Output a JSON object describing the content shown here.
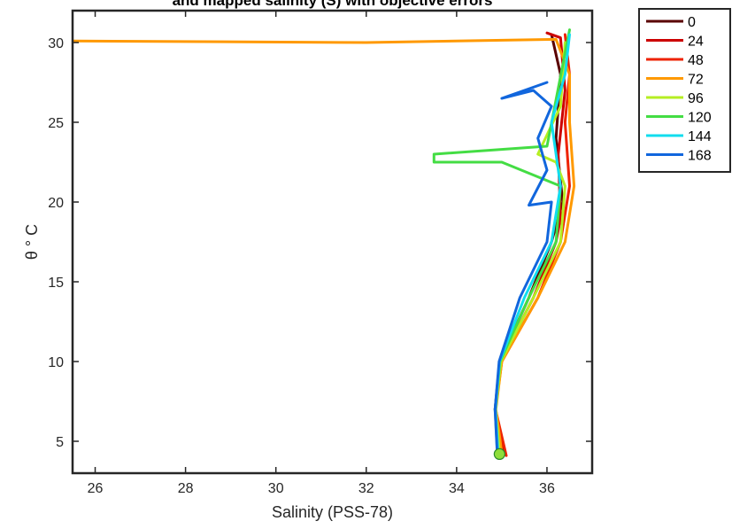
{
  "chart_data": {
    "type": "line",
    "title": "and mapped salinity (S) with objective errors",
    "xlabel": "Salinity (PSS-78)",
    "ylabel": "θ ° C",
    "xlim": [
      25.5,
      37
    ],
    "ylim": [
      3,
      32
    ],
    "xticks": [
      "26",
      "28",
      "30",
      "32",
      "34",
      "36"
    ],
    "yticks": [
      "5",
      "10",
      "15",
      "20",
      "25",
      "30"
    ],
    "legend_position": "outside-right",
    "series": [
      {
        "name": "0",
        "color": "#5a0000",
        "x": [
          35.0,
          34.85,
          34.95,
          35.6,
          36.1,
          36.35,
          36.2,
          36.3,
          36.1
        ],
        "y": [
          4.3,
          7,
          10,
          14,
          17.5,
          20,
          24,
          28,
          30.5
        ]
      },
      {
        "name": "24",
        "color": "#cc0000",
        "x": [
          35.05,
          34.86,
          34.97,
          35.7,
          36.2,
          36.3,
          36.25,
          36.4,
          36.3,
          36.0
        ],
        "y": [
          4.2,
          7,
          10,
          14,
          17.5,
          19,
          23,
          27,
          30.3,
          30.6
        ]
      },
      {
        "name": "48",
        "color": "#ee2200",
        "x": [
          35.1,
          34.86,
          35.0,
          35.8,
          36.3,
          36.5,
          36.4,
          36.5,
          36.4
        ],
        "y": [
          4.1,
          7,
          10,
          14,
          17.5,
          21,
          25,
          28,
          30.5
        ]
      },
      {
        "name": "72",
        "color": "#ff9900",
        "x": [
          35.0,
          34.87,
          35.0,
          35.8,
          36.4,
          36.6,
          36.5,
          36.5,
          36.2,
          32.0,
          25.5
        ],
        "y": [
          4.3,
          7,
          10,
          14,
          17.5,
          21,
          25,
          28,
          30.2,
          30.0,
          30.1
        ]
      },
      {
        "name": "96",
        "color": "#b5ee22",
        "x": [
          34.95,
          34.86,
          34.98,
          35.7,
          36.3,
          36.4,
          36.2,
          35.8,
          36.3,
          36.4
        ],
        "y": [
          4.3,
          7,
          10,
          14,
          17.5,
          21,
          22.5,
          23,
          26,
          30
        ]
      },
      {
        "name": "120",
        "color": "#44dd44",
        "x": [
          34.9,
          34.85,
          34.96,
          35.6,
          36.2,
          36.3,
          35.0,
          33.5,
          33.5,
          36.0,
          36.5
        ],
        "y": [
          4.4,
          7,
          10,
          14,
          17.5,
          21,
          22.5,
          22.5,
          23,
          23.5,
          30.8
        ]
      },
      {
        "name": "144",
        "color": "#11ddee",
        "x": [
          34.92,
          34.86,
          34.95,
          35.5,
          36.1,
          36.3,
          36.1,
          36.4,
          36.5
        ],
        "y": [
          4.2,
          7,
          10,
          14,
          17.5,
          21,
          25,
          28,
          30.5
        ]
      },
      {
        "name": "168",
        "color": "#1166dd",
        "x": [
          34.9,
          34.85,
          34.94,
          35.4,
          36.0,
          36.1,
          35.6,
          36.0,
          35.8,
          36.1,
          35.7,
          35.0,
          36.0
        ],
        "y": [
          4.2,
          7,
          10,
          14,
          17.5,
          20,
          19.8,
          22,
          24,
          26,
          27,
          26.5,
          27.5
        ]
      }
    ]
  }
}
